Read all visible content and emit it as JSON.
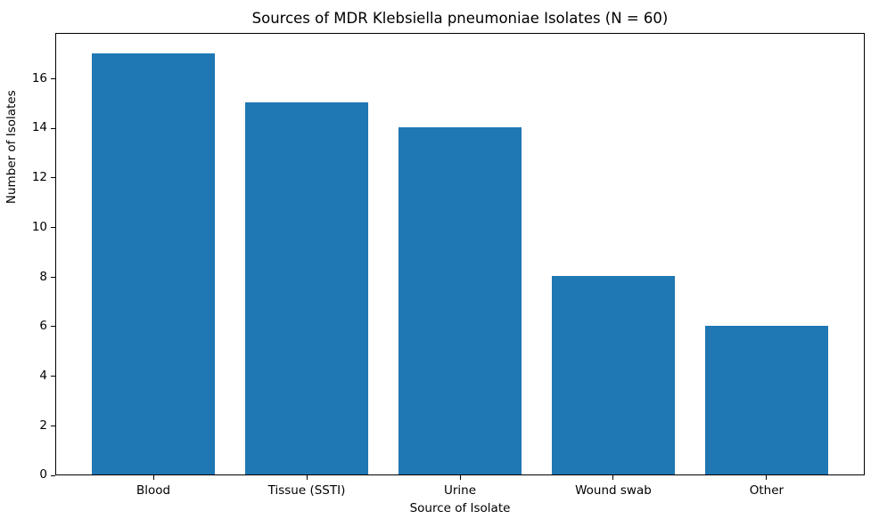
{
  "chart_data": {
    "type": "bar",
    "title": "Sources of MDR Klebsiella pneumoniae Isolates (N = 60)",
    "categories": [
      "Blood",
      "Tissue (SSTI)",
      "Urine",
      "Wound swab",
      "Other"
    ],
    "values": [
      17,
      15,
      14,
      8,
      6
    ],
    "xlabel": "Source of Isolate",
    "ylabel": "Number of Isolates",
    "ylim": [
      0,
      17.85
    ],
    "yticks": [
      0,
      2,
      4,
      6,
      8,
      10,
      12,
      14,
      16
    ],
    "bar_color": "#1f77b4",
    "bar_width_fraction": 0.8,
    "grid": false,
    "legend_position": "none",
    "total_n": 60
  }
}
